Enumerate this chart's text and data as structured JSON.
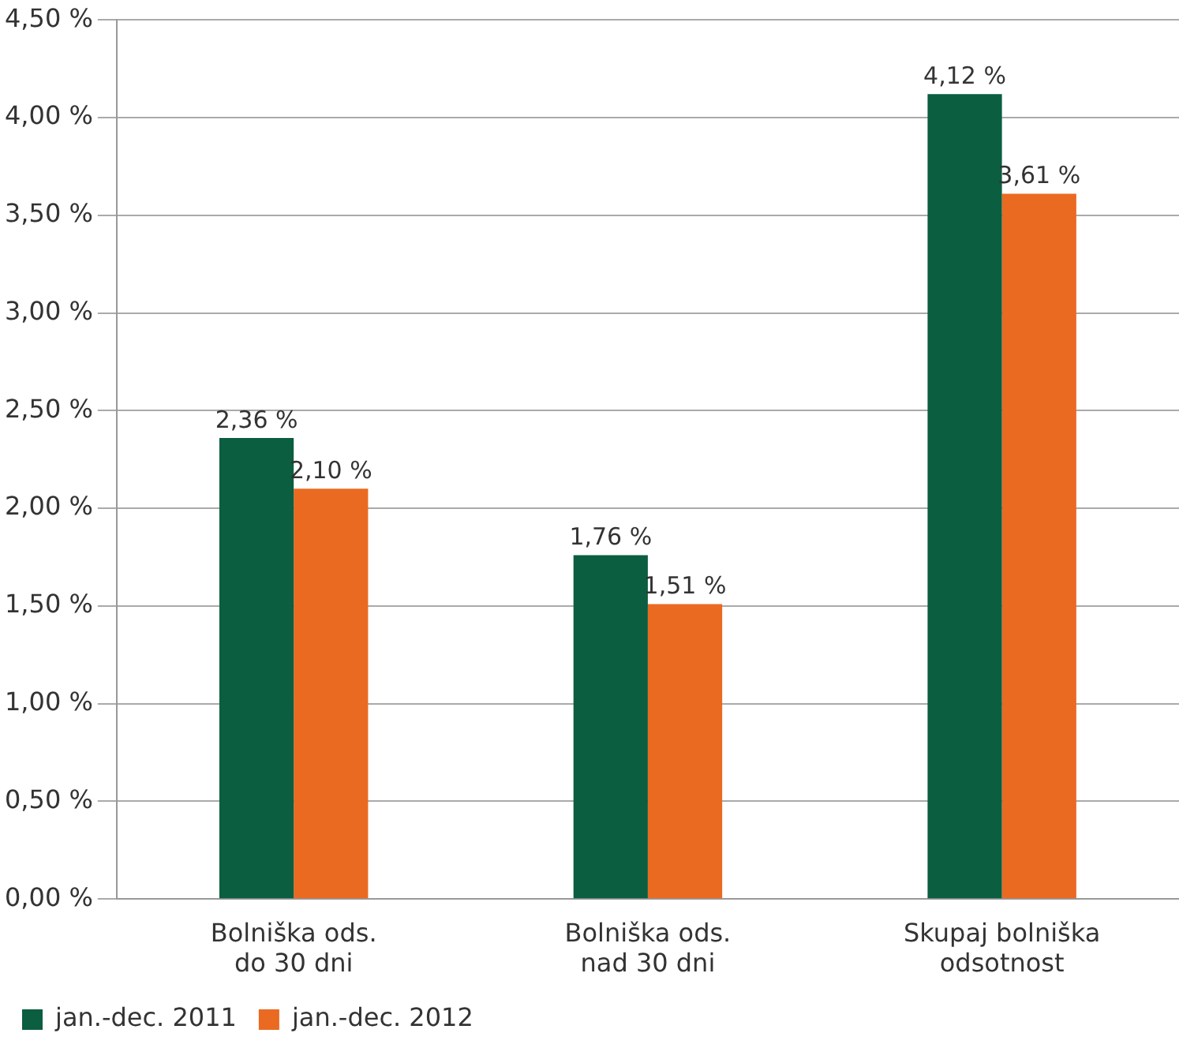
{
  "chart_data": {
    "type": "bar",
    "categories": [
      [
        "Bolniška ods.",
        "do 30 dni"
      ],
      [
        "Bolniška ods.",
        "nad 30 dni"
      ],
      [
        "Skupaj bolniška",
        "odsotnost"
      ]
    ],
    "series": [
      {
        "name": "jan.-dec. 2011",
        "color": "#0b5e40",
        "values": [
          2.36,
          1.76,
          4.12
        ],
        "value_labels": [
          "2,36 %",
          "1,76 %",
          "4,12 %"
        ]
      },
      {
        "name": "jan.-dec. 2012",
        "color": "#ea6a22",
        "values": [
          2.1,
          1.51,
          3.61
        ],
        "value_labels": [
          "2,10 %",
          "1,51 %",
          "3,61 %"
        ]
      }
    ],
    "ylim": [
      0,
      4.5
    ],
    "yticks": [
      {
        "value": 0,
        "label": "0,00 %"
      },
      {
        "value": 0.5,
        "label": "0,50 %"
      },
      {
        "value": 1,
        "label": "1,00 %"
      },
      {
        "value": 1.5,
        "label": "1,50 %"
      },
      {
        "value": 2,
        "label": "2,00 %"
      },
      {
        "value": 2.5,
        "label": "2,50 %"
      },
      {
        "value": 3,
        "label": "3,00 %"
      },
      {
        "value": 3.5,
        "label": "3,50 %"
      },
      {
        "value": 4,
        "label": "4,00 %"
      },
      {
        "value": 4.5,
        "label": "4,50 %"
      }
    ],
    "grid": "y",
    "legend": "bottom left"
  }
}
